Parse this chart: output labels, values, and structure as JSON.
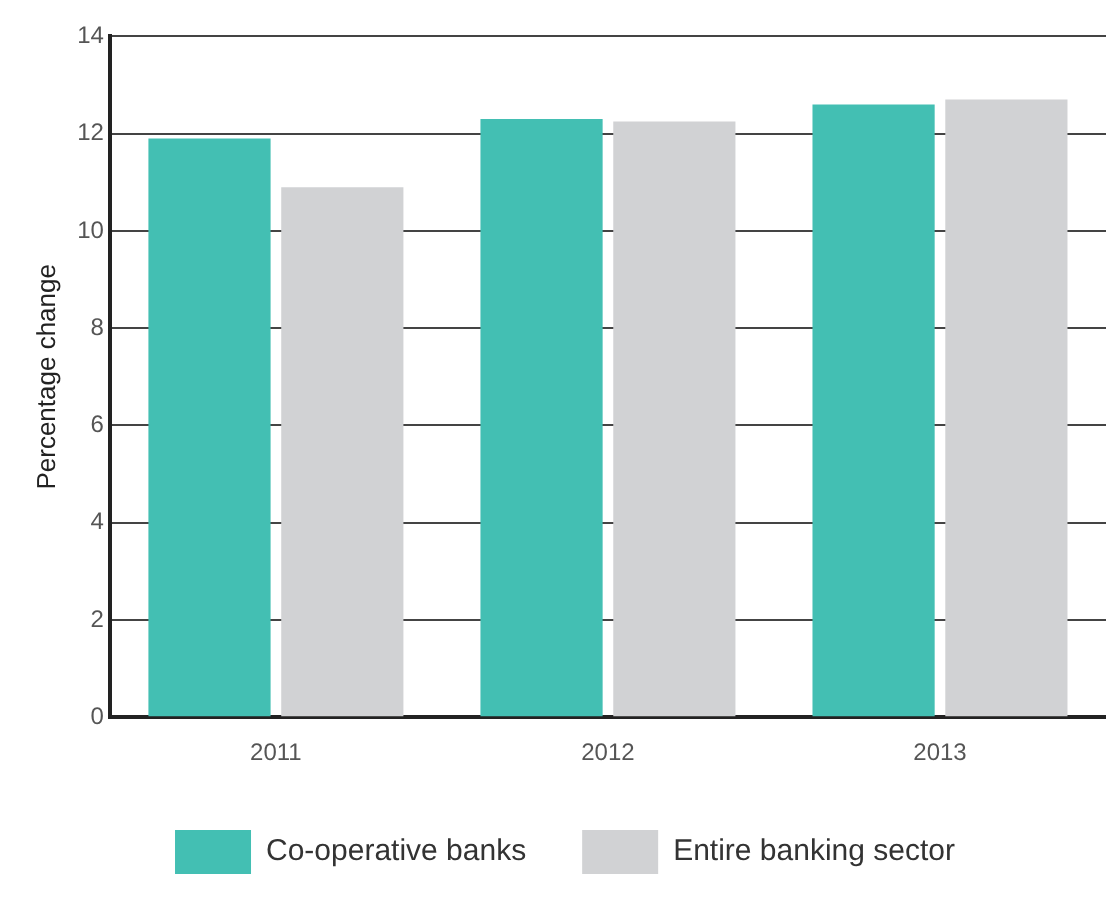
{
  "chart_data": {
    "type": "bar",
    "ylabel": "Percentage change",
    "categories": [
      "2011",
      "2012",
      "2013"
    ],
    "series": [
      {
        "name": "Co-operative banks",
        "color": "#43bfb3",
        "values": [
          11.9,
          12.3,
          12.6
        ]
      },
      {
        "name": "Entire banking sector",
        "color": "#d1d2d4",
        "values": [
          10.9,
          12.25,
          12.7
        ]
      }
    ],
    "ylim": [
      0,
      14
    ],
    "yticks": [
      0,
      2,
      4,
      6,
      8,
      10,
      12,
      14
    ],
    "grid": "y",
    "legend": "bottom"
  }
}
